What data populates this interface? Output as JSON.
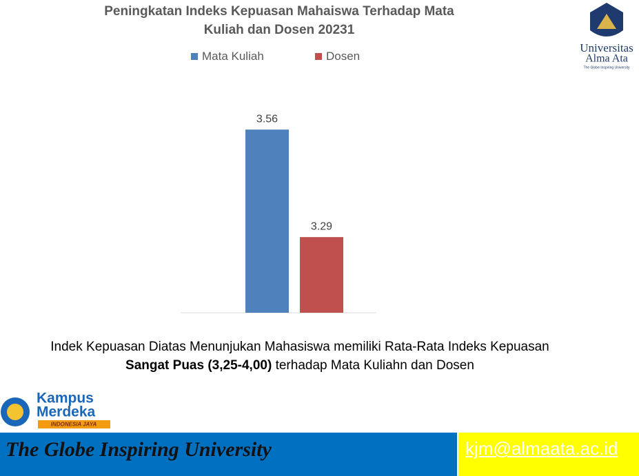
{
  "chart_data": {
    "type": "bar",
    "title": "Peningkatan Indeks Kepuasan Mahaiswa Terhadap Mata Kuliah dan Dosen 20231",
    "categories": [
      null
    ],
    "series": [
      {
        "name": "Mata Kuliah",
        "color": "#4f81bd",
        "values": [
          3.56
        ]
      },
      {
        "name": "Dosen",
        "color": "#c0504d",
        "values": [
          3.29
        ]
      }
    ],
    "ylim": [
      3.1,
      3.6
    ],
    "legend": "top"
  },
  "slide": {
    "logo": {
      "name": "Universitas",
      "name2": "Alma Ata",
      "tagline": "The Globe Inspiring University"
    },
    "note": [
      "Indek Kepuasan Diatas Menunjukan Mahasiswa memiliki Rata-Rata Indeks Kepuasan ",
      "Sangat Puas (3,25-4,00)",
      " terhadap Mata Kuliahn dan Dosen"
    ],
    "badge": {
      "line1": "Kampus",
      "line2": "Merdeka",
      "ribbon": "INDONESIA JAYA"
    },
    "footer": {
      "motto": "The Globe Inspiring University",
      "email": "kjm@almaata.ac.id"
    }
  }
}
